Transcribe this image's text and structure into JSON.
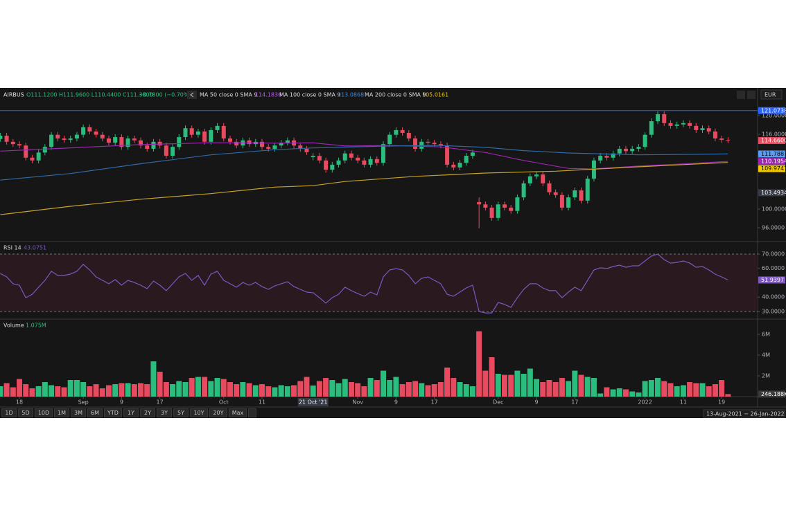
{
  "header": {
    "symbol": "AIRBUS",
    "ohlc": "O111.1200 H111.9600 L110.4400 C111.3800",
    "change": "−0.7800 (−0.70%)",
    "currency": "EUR",
    "ranges": [
      "1D",
      "5D",
      "10D",
      "1M",
      "3M",
      "6M",
      "YTD",
      "1Y",
      "2Y",
      "3Y",
      "5Y",
      "10Y",
      "20Y",
      "Max"
    ],
    "date_range": "13-Aug-2021 − 26-Jan-2022"
  },
  "chart_data": [
    {
      "type": "candlestick",
      "ylim": [
        93.04,
        123.26
      ],
      "grid": false,
      "up_color": "#2bbd7e",
      "down_color": "#e84a5f",
      "yticks": [
        {
          "value": 96,
          "label": "96.0000"
        },
        {
          "value": 100,
          "label": "100.0000"
        },
        {
          "value": 116,
          "label": "116.0000"
        },
        {
          "value": 120,
          "label": "120.0000"
        }
      ],
      "candles": {
        "open": [
          115.0,
          115.7,
          114.4,
          113.9,
          113.6,
          111.0,
          110.4,
          112.1,
          113.3,
          115.9,
          115.1,
          114.8,
          115.1,
          115.9,
          117.5,
          116.6,
          115.9,
          115.1,
          114.2,
          115.4,
          113.3,
          115.1,
          114.7,
          113.6,
          112.9,
          114.4,
          113.6,
          111.4,
          113.3,
          115.4,
          117.3,
          115.9,
          116.6,
          114.4,
          116.9,
          117.8,
          115.1,
          114.4,
          113.6,
          114.7,
          113.9,
          114.4,
          113.3,
          112.9,
          113.6,
          114.2,
          114.7,
          113.6,
          112.9,
          111.12,
          111.38,
          110.4,
          108.4,
          109.5,
          110.4,
          111.9,
          111.0,
          110.4,
          109.5,
          110.7,
          109.9,
          113.9,
          115.9,
          116.9,
          116.3,
          115.1,
          112.9,
          114.4,
          114.2,
          113.9,
          113.6,
          109.5,
          108.9,
          109.9,
          111.4,
          101.5,
          101.0,
          100.3,
          98.1,
          101.0,
          100.3,
          99.6,
          102.5,
          105.5,
          107.0,
          107.4,
          105.5,
          103.6,
          103.0,
          100.3,
          102.5,
          104.0,
          101.8,
          106.5,
          110.4,
          111.4,
          111.0,
          111.9,
          112.9,
          112.4,
          112.9,
          113.3,
          115.9,
          118.8,
          120.3,
          118.4,
          117.8,
          118.1,
          118.4,
          117.8,
          116.9,
          117.3,
          116.6,
          115.1,
          114.8
        ],
        "high": [
          116.3,
          116.3,
          115.0,
          114.5,
          114.2,
          111.6,
          112.7,
          113.9,
          116.5,
          116.5,
          115.7,
          115.7,
          116.5,
          118.1,
          118.1,
          117.2,
          116.5,
          115.7,
          116.0,
          116.0,
          115.7,
          115.7,
          115.3,
          114.2,
          115.0,
          115.0,
          114.2,
          113.9,
          116.0,
          117.9,
          117.9,
          117.2,
          117.2,
          117.5,
          118.4,
          118.4,
          115.7,
          115.0,
          115.3,
          115.3,
          115.0,
          115.0,
          113.9,
          114.2,
          114.8,
          115.3,
          115.3,
          114.2,
          113.5,
          111.96,
          112.0,
          111.0,
          110.1,
          111.0,
          112.5,
          112.5,
          111.6,
          111.0,
          111.3,
          111.3,
          114.5,
          116.5,
          117.5,
          117.5,
          116.9,
          115.7,
          115.0,
          115.0,
          114.8,
          114.5,
          114.2,
          110.1,
          110.5,
          112.0,
          112.7,
          102.5,
          101.6,
          100.9,
          101.6,
          101.6,
          100.9,
          103.1,
          106.1,
          107.6,
          108.0,
          108.0,
          106.1,
          104.2,
          103.6,
          103.1,
          104.6,
          104.6,
          107.1,
          111.0,
          112.0,
          112.0,
          112.5,
          113.5,
          113.5,
          113.5,
          113.9,
          116.5,
          119.4,
          120.9,
          120.9,
          119.0,
          118.7,
          119.0,
          119.0,
          118.4,
          117.9,
          117.9,
          117.2,
          115.7,
          115.4
        ],
        "low": [
          114.4,
          113.8,
          113.3,
          113.0,
          110.4,
          109.8,
          109.8,
          111.5,
          112.7,
          114.5,
          114.2,
          114.2,
          114.5,
          115.3,
          116.0,
          115.3,
          114.5,
          113.6,
          113.6,
          112.7,
          112.7,
          114.1,
          113.0,
          112.3,
          112.3,
          113.0,
          110.8,
          110.8,
          112.7,
          114.8,
          115.3,
          115.3,
          113.8,
          113.8,
          116.3,
          114.5,
          113.8,
          113.0,
          113.0,
          113.3,
          113.3,
          112.7,
          112.3,
          112.3,
          113.0,
          113.6,
          113.0,
          112.3,
          111.6,
          110.44,
          109.8,
          107.8,
          107.8,
          108.9,
          109.8,
          110.4,
          109.8,
          108.9,
          108.9,
          109.3,
          109.3,
          113.3,
          115.3,
          115.7,
          114.5,
          112.3,
          112.3,
          113.6,
          113.3,
          113.0,
          108.9,
          108.3,
          108.3,
          109.3,
          110.8,
          95.9,
          99.7,
          97.5,
          97.5,
          99.7,
          99.0,
          99.0,
          101.9,
          104.9,
          106.4,
          104.9,
          103.0,
          102.4,
          99.7,
          99.7,
          101.9,
          101.2,
          101.2,
          105.9,
          109.8,
          110.4,
          110.4,
          111.3,
          111.8,
          111.8,
          112.3,
          112.7,
          115.3,
          118.2,
          117.8,
          117.2,
          117.2,
          117.5,
          117.2,
          116.3,
          116.3,
          116.0,
          114.5,
          114.2,
          114.1
        ],
        "close": [
          115.7,
          114.4,
          113.9,
          113.6,
          111.0,
          110.4,
          112.1,
          113.3,
          115.9,
          115.1,
          114.8,
          115.1,
          115.9,
          117.5,
          116.6,
          115.9,
          115.1,
          114.2,
          115.4,
          113.3,
          115.1,
          114.7,
          113.6,
          112.9,
          114.4,
          113.6,
          111.4,
          113.3,
          115.4,
          117.3,
          115.9,
          116.6,
          114.4,
          116.9,
          117.8,
          115.1,
          114.4,
          113.6,
          114.7,
          113.9,
          114.4,
          113.3,
          112.9,
          113.6,
          114.2,
          114.7,
          113.6,
          112.9,
          112.16,
          111.38,
          110.4,
          108.4,
          109.5,
          110.4,
          111.9,
          111.0,
          110.4,
          109.5,
          110.7,
          109.9,
          113.9,
          115.9,
          116.9,
          116.3,
          115.1,
          112.9,
          114.4,
          114.2,
          113.9,
          113.6,
          109.5,
          108.9,
          109.9,
          111.4,
          112.1,
          101.0,
          100.3,
          98.1,
          101.0,
          100.3,
          99.6,
          102.5,
          105.5,
          107.0,
          107.4,
          105.5,
          103.6,
          103.0,
          100.3,
          102.5,
          104.0,
          101.8,
          106.5,
          110.4,
          111.4,
          111.0,
          111.9,
          112.9,
          112.4,
          112.9,
          113.3,
          115.9,
          118.8,
          120.3,
          118.4,
          117.8,
          118.1,
          118.4,
          117.8,
          116.9,
          117.3,
          116.6,
          115.1,
          114.8,
          114.66
        ]
      },
      "close_labels": {
        "114": "114.6600"
      },
      "lines": [
        {
          "name": "MA 50 close 0 SMA 9",
          "color": "#9c27b0",
          "label_color": "#b05ce0",
          "badge_color": "#9c27b0",
          "badge_text": "#ffffff",
          "x": [
            0,
            11,
            22,
            33,
            43,
            49,
            54,
            61,
            69,
            76,
            82,
            89,
            93,
            100,
            106,
            114
          ],
          "values": [
            112.4,
            113.1,
            113.8,
            114.2,
            114.1,
            114.1836,
            113.5,
            113.6,
            113.3,
            112.1,
            110.4,
            108.7,
            108.6,
            109.2,
            109.6,
            110.1954
          ]
        },
        {
          "name": "MA 100 close 0 SMA 9",
          "color": "#2f6aa8",
          "label_color": "#3f86d0",
          "badge_color": "#5b9cf0",
          "badge_text": "#000000",
          "x": [
            0,
            11,
            22,
            33,
            43,
            49,
            61,
            69,
            76,
            82,
            89,
            100,
            114
          ],
          "values": [
            106.2,
            107.6,
            109.7,
            111.6,
            112.7,
            113.0868,
            113.5,
            113.6,
            113.2,
            112.5,
            112.0,
            111.6,
            111.7887
          ]
        },
        {
          "name": "MA 200 close 0 SMA 9",
          "color": "#c9a227",
          "label_color": "#e0c030",
          "badge_color": "#f0c800",
          "badge_text": "#000000",
          "x": [
            0,
            11,
            22,
            33,
            43,
            49,
            54,
            65,
            76,
            87,
            98,
            114
          ],
          "values": [
            98.8,
            100.6,
            102.1,
            103.3,
            104.7,
            105.0161,
            105.9,
            107.0,
            107.7,
            108.1,
            108.9,
            109.9747
          ]
        }
      ],
      "levels": [
        {
          "value": 121.0738,
          "color": "#2962ff",
          "line": true
        },
        {
          "value": 103.4934,
          "color": "#363a45",
          "line": false
        }
      ]
    },
    {
      "type": "line",
      "name": "RSI 14",
      "color": "#7e57c2",
      "ylim": [
        24.7,
        78.67
      ],
      "band": [
        30,
        70
      ],
      "band_color": "#2a1a20",
      "yticks": [
        {
          "value": 70,
          "label": "70.0000"
        },
        {
          "value": 60,
          "label": "60.0000"
        },
        {
          "value": 40,
          "label": "40.0000"
        },
        {
          "value": 30,
          "label": "30.0000"
        }
      ],
      "values": [
        56.5,
        54.1,
        49.3,
        48.3,
        39.6,
        42.0,
        46.9,
        51.7,
        58.0,
        55.1,
        55.1,
        56.0,
        58.0,
        62.8,
        58.9,
        54.1,
        51.7,
        49.3,
        52.2,
        48.3,
        51.7,
        50.2,
        48.3,
        45.9,
        51.2,
        48.3,
        44.5,
        49.3,
        54.1,
        56.5,
        51.7,
        55.1,
        48.3,
        56.0,
        58.0,
        51.7,
        49.3,
        46.9,
        50.2,
        48.3,
        50.2,
        47.3,
        45.4,
        47.8,
        49.3,
        50.7,
        47.3,
        45.4,
        43.5,
        43.0751,
        39.6,
        35.8,
        39.6,
        42.0,
        46.9,
        44.5,
        42.5,
        40.6,
        43.5,
        41.6,
        54.1,
        58.9,
        59.9,
        58.9,
        55.1,
        49.3,
        53.1,
        54.1,
        51.7,
        49.3,
        42.0,
        40.6,
        43.5,
        46.4,
        48.3,
        30.0,
        29.0,
        29.0,
        36.3,
        34.9,
        32.9,
        39.6,
        45.4,
        49.3,
        49.3,
        46.4,
        44.5,
        44.5,
        39.6,
        43.5,
        46.9,
        44.5,
        51.7,
        58.9,
        60.4,
        59.9,
        61.3,
        62.3,
        60.8,
        61.8,
        61.8,
        65.2,
        68.6,
        70.0,
        66.1,
        63.7,
        64.2,
        65.2,
        63.7,
        60.8,
        61.3,
        58.9,
        56.0,
        54.1,
        51.9397
      ]
    },
    {
      "type": "bar",
      "name": "Volume",
      "ylim": [
        0,
        7.47
      ],
      "yticks": [
        {
          "value": 6,
          "label": "6M"
        },
        {
          "value": 4,
          "label": "4M"
        },
        {
          "value": 2,
          "label": "2M"
        }
      ],
      "values": [
        1.0,
        1.3,
        0.9,
        1.7,
        1.2,
        0.8,
        1.0,
        1.4,
        1.1,
        1.0,
        0.9,
        1.6,
        1.6,
        1.4,
        1.0,
        1.2,
        0.8,
        1.1,
        1.2,
        1.3,
        1.3,
        1.2,
        1.3,
        1.2,
        3.4,
        2.4,
        1.4,
        1.2,
        1.5,
        1.4,
        1.8,
        1.9,
        1.9,
        1.5,
        1.8,
        1.7,
        1.4,
        1.2,
        1.4,
        1.3,
        1.1,
        1.2,
        1.0,
        0.9,
        1.1,
        1.0,
        1.1,
        1.5,
        1.9,
        1.075,
        1.5,
        1.8,
        1.6,
        1.3,
        1.7,
        1.4,
        1.3,
        1.0,
        1.8,
        1.6,
        2.5,
        1.6,
        1.9,
        1.2,
        1.4,
        1.5,
        1.3,
        1.1,
        1.2,
        1.4,
        2.8,
        1.8,
        1.4,
        1.2,
        1.0,
        6.3,
        2.5,
        3.8,
        2.2,
        2.1,
        2.1,
        2.5,
        2.2,
        2.7,
        1.7,
        1.4,
        1.6,
        1.4,
        1.8,
        1.5,
        2.5,
        2.1,
        1.9,
        1.8,
        0.3,
        0.9,
        0.7,
        0.8,
        0.7,
        0.5,
        0.4,
        1.5,
        1.6,
        1.8,
        1.5,
        1.3,
        1.0,
        1.1,
        1.4,
        1.3,
        1.3,
        1.0,
        1.2,
        1.6,
        0.246188
      ],
      "value_labels": {
        "49": "1.075M",
        "114": "246.188K"
      },
      "xticks": [
        {
          "value": 3,
          "label": "18"
        },
        {
          "value": 13,
          "label": "Sep"
        },
        {
          "value": 19,
          "label": "9"
        },
        {
          "value": 25,
          "label": "17"
        },
        {
          "value": 35,
          "label": "Oct"
        },
        {
          "value": 41,
          "label": "11"
        },
        {
          "value": 56,
          "label": "Nov"
        },
        {
          "value": 62,
          "label": "9"
        },
        {
          "value": 68,
          "label": "17"
        },
        {
          "value": 78,
          "label": "Dec"
        },
        {
          "value": 84,
          "label": "9"
        },
        {
          "value": 90,
          "label": "17"
        },
        {
          "value": 101,
          "label": "2022"
        },
        {
          "value": 107,
          "label": "11"
        },
        {
          "value": 113,
          "label": "19"
        }
      ],
      "crosshair": {
        "value": 49,
        "label": "21 Oct '21"
      }
    }
  ]
}
